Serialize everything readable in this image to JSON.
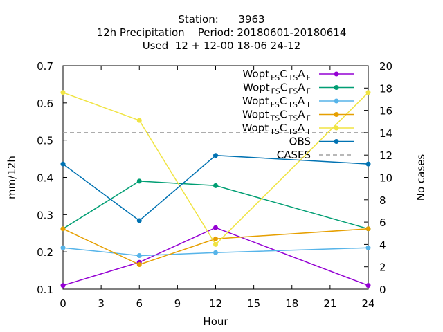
{
  "chart_data": {
    "type": "line",
    "title_lines": [
      "Station:      3963",
      "12h Precipitation    Period: 20180601-20180614",
      "Used  12 + 12-00 18-06 24-12"
    ],
    "xlabel": "Hour",
    "ylabel": "mm/12h",
    "y2label": "No cases",
    "xlim": [
      0,
      24
    ],
    "xticks": [
      "0",
      "3",
      "6",
      "9",
      "12",
      "15",
      "18",
      "21",
      "24"
    ],
    "ylim": [
      0.1,
      0.7
    ],
    "yticks": [
      "0.1",
      "0.2",
      "0.3",
      "0.4",
      "0.5",
      "0.6",
      "0.7"
    ],
    "y2lim": [
      0,
      20
    ],
    "y2ticks": [
      "0",
      "2",
      "4",
      "6",
      "8",
      "10",
      "12",
      "14",
      "16",
      "18",
      "20"
    ],
    "grid": false,
    "legend_position": "top-right",
    "x": [
      0,
      6,
      12,
      24
    ],
    "series": [
      {
        "base": "Wopt",
        "sub1": "FS",
        "mid": "C",
        "sub2": "TS",
        "end": "A",
        "sub3": "F",
        "color": "#9400d3",
        "values": [
          0.11,
          0.172,
          0.265,
          0.11
        ]
      },
      {
        "base": "Wopt",
        "sub1": "FS",
        "mid": "C",
        "sub2": "FS",
        "end": "A",
        "sub3": "F",
        "color": "#009e73",
        "values": [
          0.262,
          0.39,
          0.378,
          0.262
        ]
      },
      {
        "base": "Wopt",
        "sub1": "FS",
        "mid": "C",
        "sub2": "TS",
        "end": "A",
        "sub3": "T",
        "color": "#56b4e9",
        "values": [
          0.211,
          0.19,
          0.198,
          0.211
        ]
      },
      {
        "base": "Wopt",
        "sub1": "TS",
        "mid": "C",
        "sub2": "TS",
        "end": "A",
        "sub3": "F",
        "color": "#e69f00",
        "values": [
          0.262,
          0.166,
          0.235,
          0.262
        ]
      },
      {
        "base": "Wopt",
        "sub1": "TS",
        "mid": "C",
        "sub2": "TS",
        "end": "A",
        "sub3": "T",
        "color": "#f0e442",
        "values": [
          0.628,
          0.553,
          0.22,
          0.628
        ]
      },
      {
        "name": "OBS",
        "color": "#0072b2",
        "values": [
          0.436,
          0.284,
          0.459,
          0.436
        ]
      }
    ],
    "cases": {
      "name": "CASES",
      "color": "#a0a0a0",
      "axis": "y2",
      "value": 14
    }
  }
}
